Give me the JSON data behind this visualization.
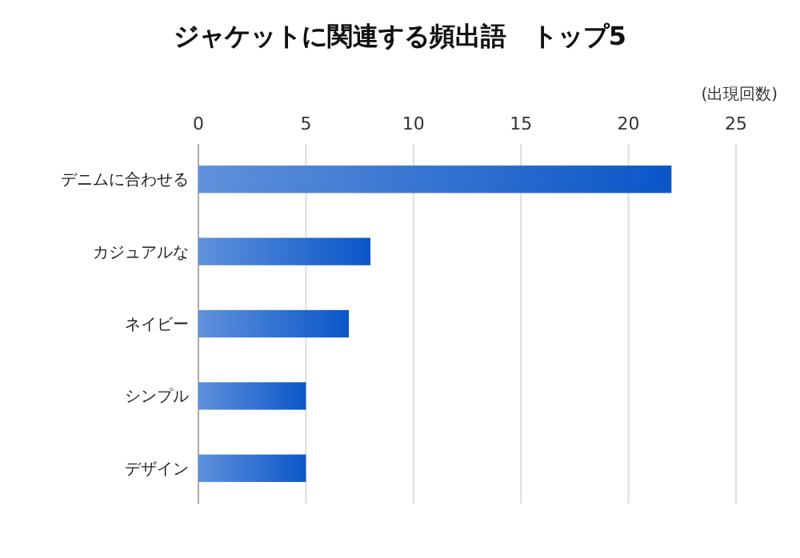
{
  "chart_data": {
    "type": "bar",
    "orientation": "horizontal",
    "title": "ジャケットに関連する頻出語　トップ5",
    "xlabel": "(出現回数)",
    "categories": [
      "デニムに合わせる",
      "カジュアルな",
      "ネイビー",
      "シンプル",
      "デザイン"
    ],
    "values": [
      22,
      8,
      7,
      5,
      5
    ],
    "color": "#0a56c8",
    "xlim": [
      0,
      25
    ],
    "xticks": [
      0,
      5,
      10,
      15,
      20,
      25
    ],
    "grid": "x"
  }
}
